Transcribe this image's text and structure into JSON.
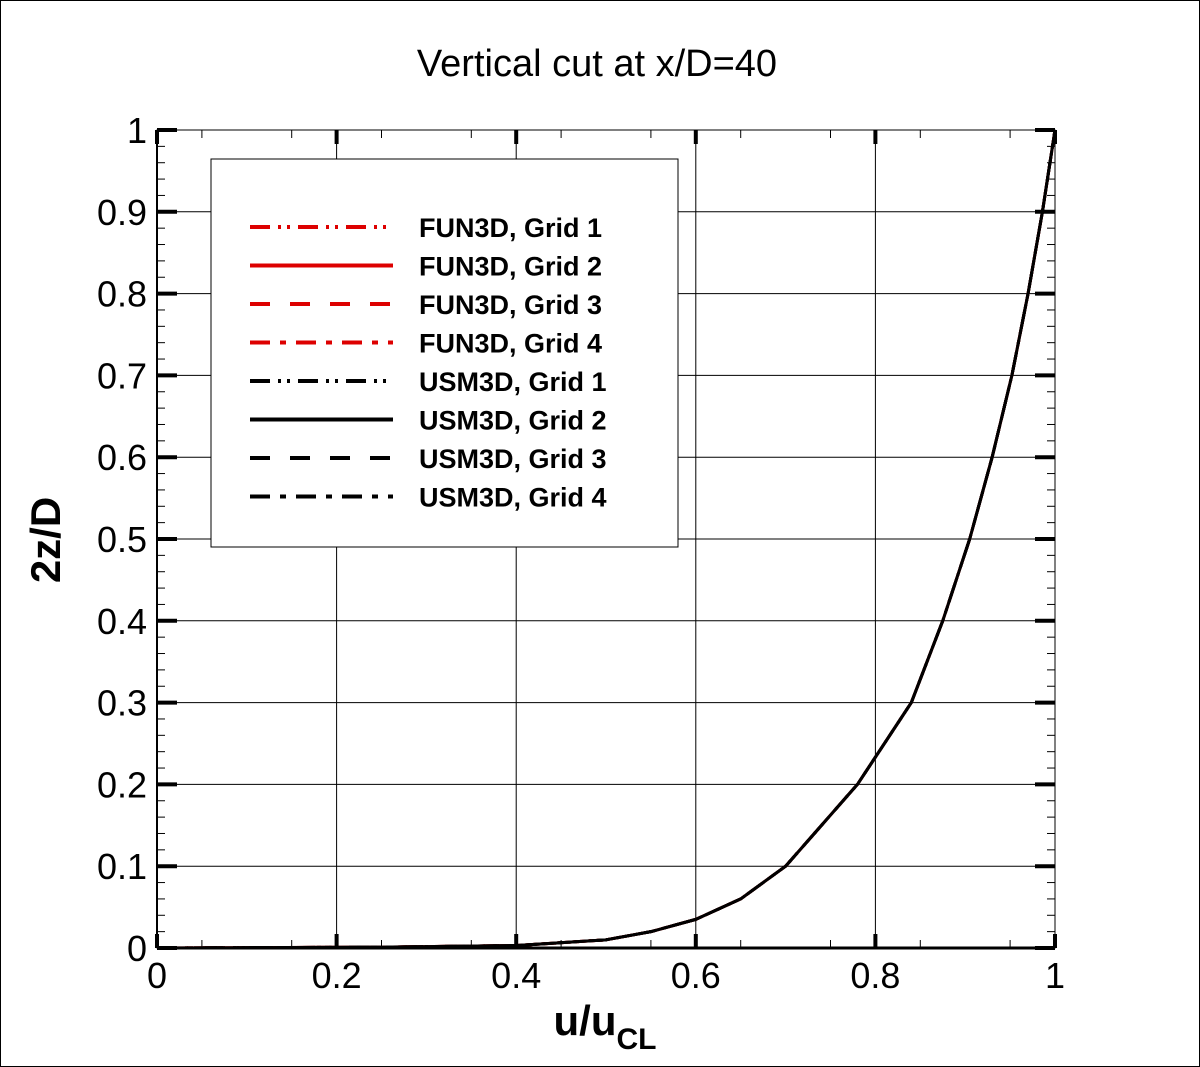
{
  "chart_data": {
    "type": "line",
    "title": "Vertical cut at x/D=40",
    "xlabel": "u/u",
    "xlabel_sub": "CL",
    "ylabel": "2z/D",
    "xlim": [
      0,
      1
    ],
    "ylim": [
      0,
      1
    ],
    "grid": true,
    "legend_placement": "top-left",
    "x_ticks": [
      "0",
      "0.2",
      "0.4",
      "0.6",
      "0.8",
      "1"
    ],
    "y_ticks": [
      "0",
      "0.1",
      "0.2",
      "0.3",
      "0.4",
      "0.5",
      "0.6",
      "0.7",
      "0.8",
      "0.9",
      "1"
    ],
    "profile": {
      "u": [
        0,
        0.25,
        0.4,
        0.5,
        0.55,
        0.6,
        0.65,
        0.7,
        0.78,
        0.84,
        0.875,
        0.905,
        0.93,
        0.952,
        0.97,
        0.986,
        1.0
      ],
      "z": [
        0,
        0.001,
        0.003,
        0.01,
        0.02,
        0.035,
        0.06,
        0.1,
        0.2,
        0.3,
        0.4,
        0.5,
        0.6,
        0.7,
        0.8,
        0.9,
        1.0
      ]
    },
    "series": [
      {
        "name": "FUN3D, Grid 1",
        "color": "#dd0000",
        "dash": "dash-dot-dot"
      },
      {
        "name": "FUN3D, Grid 2",
        "color": "#dd0000",
        "dash": "solid"
      },
      {
        "name": "FUN3D, Grid 3",
        "color": "#dd0000",
        "dash": "dash"
      },
      {
        "name": "FUN3D, Grid 4",
        "color": "#dd0000",
        "dash": "dash-dot"
      },
      {
        "name": "USM3D, Grid 1",
        "color": "#000000",
        "dash": "dash-dot-dot"
      },
      {
        "name": "USM3D, Grid 2",
        "color": "#000000",
        "dash": "solid"
      },
      {
        "name": "USM3D, Grid 3",
        "color": "#000000",
        "dash": "dash"
      },
      {
        "name": "USM3D, Grid 4",
        "color": "#000000",
        "dash": "dash-dot"
      }
    ]
  }
}
